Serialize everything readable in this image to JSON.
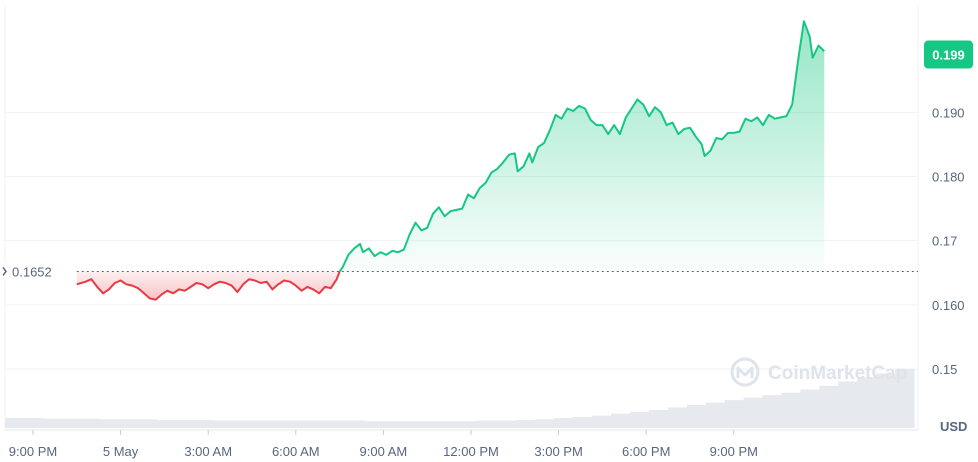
{
  "chart_data": {
    "type": "area",
    "currency_label": "USD",
    "baseline_value": 0.1652,
    "baseline_label": "0.1652",
    "current_value": 0.199,
    "current_label": "0.199",
    "ylim": [
      0.1405,
      0.2075
    ],
    "y_ticks": [
      {
        "value": 0.19,
        "label": "0.190"
      },
      {
        "value": 0.18,
        "label": "0.180"
      },
      {
        "value": 0.17,
        "label": "0.17"
      },
      {
        "value": 0.16,
        "label": "0.160"
      },
      {
        "value": 0.15,
        "label": "0.15"
      }
    ],
    "x_ticks": [
      {
        "label": "9:00 PM",
        "hour": 0
      },
      {
        "label": "5 May",
        "hour": 3
      },
      {
        "label": "3:00 AM",
        "hour": 6
      },
      {
        "label": "6:00 AM",
        "hour": 9
      },
      {
        "label": "9:00 AM",
        "hour": 12
      },
      {
        "label": "12:00 PM",
        "hour": 15
      },
      {
        "label": "3:00 PM",
        "hour": 18
      },
      {
        "label": "6:00 PM",
        "hour": 21
      },
      {
        "label": "9:00 PM",
        "hour": 24
      }
    ],
    "series": [
      {
        "points": [
          [
            1.5,
            0.1632
          ],
          [
            1.8,
            0.1636
          ],
          [
            2.0,
            0.164
          ],
          [
            2.2,
            0.1628
          ],
          [
            2.4,
            0.1618
          ],
          [
            2.6,
            0.1624
          ],
          [
            2.8,
            0.1634
          ],
          [
            3.0,
            0.1638
          ],
          [
            3.2,
            0.1632
          ],
          [
            3.4,
            0.163
          ],
          [
            3.6,
            0.1626
          ],
          [
            3.8,
            0.1618
          ],
          [
            4.0,
            0.161
          ],
          [
            4.2,
            0.1608
          ],
          [
            4.4,
            0.1616
          ],
          [
            4.6,
            0.1622
          ],
          [
            4.8,
            0.1618
          ],
          [
            5.0,
            0.1624
          ],
          [
            5.2,
            0.1622
          ],
          [
            5.4,
            0.1628
          ],
          [
            5.6,
            0.1634
          ],
          [
            5.8,
            0.1632
          ],
          [
            6.0,
            0.1626
          ],
          [
            6.2,
            0.1632
          ],
          [
            6.4,
            0.1636
          ],
          [
            6.6,
            0.1634
          ],
          [
            6.8,
            0.163
          ],
          [
            7.0,
            0.162
          ],
          [
            7.2,
            0.1632
          ],
          [
            7.4,
            0.164
          ],
          [
            7.6,
            0.1638
          ],
          [
            7.8,
            0.1634
          ],
          [
            8.0,
            0.1636
          ],
          [
            8.2,
            0.1624
          ],
          [
            8.4,
            0.1632
          ],
          [
            8.6,
            0.1638
          ],
          [
            8.8,
            0.1636
          ],
          [
            9.0,
            0.163
          ],
          [
            9.2,
            0.1622
          ],
          [
            9.4,
            0.1628
          ],
          [
            9.6,
            0.1624
          ],
          [
            9.8,
            0.1618
          ],
          [
            10.0,
            0.1628
          ],
          [
            10.2,
            0.1626
          ],
          [
            10.4,
            0.164
          ],
          [
            10.5,
            0.1652
          ],
          [
            10.6,
            0.1658
          ],
          [
            10.8,
            0.1678
          ],
          [
            11.0,
            0.1688
          ],
          [
            11.2,
            0.1695
          ],
          [
            11.3,
            0.1682
          ],
          [
            11.5,
            0.1688
          ],
          [
            11.7,
            0.1676
          ],
          [
            11.9,
            0.1682
          ],
          [
            12.1,
            0.1678
          ],
          [
            12.3,
            0.1684
          ],
          [
            12.5,
            0.1682
          ],
          [
            12.7,
            0.1686
          ],
          [
            12.9,
            0.171
          ],
          [
            13.1,
            0.1728
          ],
          [
            13.3,
            0.1716
          ],
          [
            13.5,
            0.172
          ],
          [
            13.7,
            0.1742
          ],
          [
            13.9,
            0.1752
          ],
          [
            14.1,
            0.1738
          ],
          [
            14.3,
            0.1746
          ],
          [
            14.5,
            0.1748
          ],
          [
            14.7,
            0.175
          ],
          [
            14.9,
            0.1772
          ],
          [
            15.1,
            0.1766
          ],
          [
            15.3,
            0.1782
          ],
          [
            15.5,
            0.179
          ],
          [
            15.7,
            0.1806
          ],
          [
            15.9,
            0.1812
          ],
          [
            16.1,
            0.1822
          ],
          [
            16.3,
            0.1834
          ],
          [
            16.5,
            0.1836
          ],
          [
            16.6,
            0.1808
          ],
          [
            16.8,
            0.1816
          ],
          [
            17.0,
            0.1836
          ],
          [
            17.1,
            0.1822
          ],
          [
            17.3,
            0.1846
          ],
          [
            17.5,
            0.1852
          ],
          [
            17.7,
            0.1872
          ],
          [
            17.9,
            0.1896
          ],
          [
            18.1,
            0.189
          ],
          [
            18.3,
            0.1906
          ],
          [
            18.5,
            0.1902
          ],
          [
            18.7,
            0.191
          ],
          [
            18.9,
            0.1906
          ],
          [
            19.1,
            0.1888
          ],
          [
            19.3,
            0.188
          ],
          [
            19.5,
            0.188
          ],
          [
            19.7,
            0.1866
          ],
          [
            19.9,
            0.188
          ],
          [
            20.1,
            0.1866
          ],
          [
            20.3,
            0.1892
          ],
          [
            20.5,
            0.1906
          ],
          [
            20.7,
            0.192
          ],
          [
            20.9,
            0.1912
          ],
          [
            21.1,
            0.1894
          ],
          [
            21.3,
            0.1908
          ],
          [
            21.5,
            0.19
          ],
          [
            21.7,
            0.188
          ],
          [
            21.9,
            0.1884
          ],
          [
            22.1,
            0.1866
          ],
          [
            22.3,
            0.1874
          ],
          [
            22.5,
            0.1876
          ],
          [
            22.7,
            0.1862
          ],
          [
            22.9,
            0.185
          ],
          [
            23.0,
            0.1832
          ],
          [
            23.2,
            0.184
          ],
          [
            23.4,
            0.186
          ],
          [
            23.6,
            0.1858
          ],
          [
            23.8,
            0.1868
          ],
          [
            24.0,
            0.1868
          ],
          [
            24.2,
            0.187
          ],
          [
            24.4,
            0.189
          ],
          [
            24.6,
            0.1886
          ],
          [
            24.8,
            0.1892
          ],
          [
            25.0,
            0.188
          ],
          [
            25.2,
            0.1896
          ],
          [
            25.4,
            0.189
          ],
          [
            25.6,
            0.1892
          ],
          [
            25.8,
            0.1894
          ],
          [
            26.0,
            0.1912
          ],
          [
            26.2,
            0.198
          ],
          [
            26.4,
            0.2042
          ],
          [
            26.6,
            0.2018
          ],
          [
            26.7,
            0.1985
          ],
          [
            26.9,
            0.2004
          ],
          [
            27.1,
            0.1995
          ]
        ]
      }
    ],
    "volume": {
      "values": [
        0.16,
        0.16,
        0.15,
        0.15,
        0.15,
        0.14,
        0.14,
        0.14,
        0.13,
        0.13,
        0.13,
        0.12,
        0.12,
        0.12,
        0.12,
        0.12,
        0.12,
        0.12,
        0.12,
        0.11,
        0.11,
        0.11,
        0.11,
        0.11,
        0.11,
        0.12,
        0.12,
        0.13,
        0.14,
        0.16,
        0.18,
        0.2,
        0.23,
        0.26,
        0.29,
        0.33,
        0.37,
        0.41,
        0.45,
        0.49,
        0.53,
        0.57,
        0.62,
        0.68,
        0.75,
        0.82,
        0.88,
        0.95
      ]
    },
    "colors": {
      "up": "#16c784",
      "down": "#ea3943",
      "badge": "#16c784",
      "grid": "#eff2f5",
      "axis_text": "#58667e"
    },
    "watermark": "CoinMarketCap"
  }
}
